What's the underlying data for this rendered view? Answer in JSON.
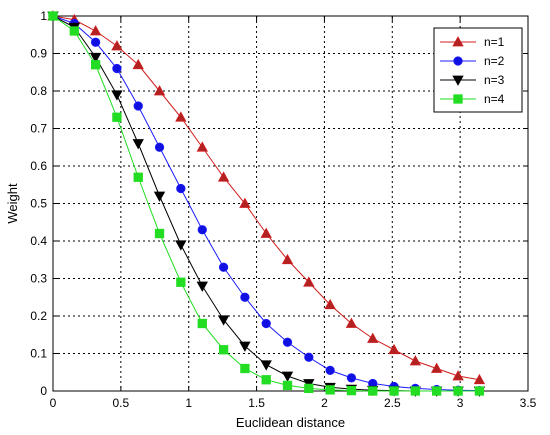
{
  "chart_data": {
    "type": "line",
    "title": "",
    "xlabel": "Euclidean distance",
    "ylabel": "Weight",
    "xlim": [
      0,
      3.5
    ],
    "ylim": [
      0,
      1
    ],
    "x_ticks": [
      "0",
      "0.5",
      "1",
      "1.5",
      "2",
      "2.5",
      "3",
      "3.5"
    ],
    "y_ticks": [
      "0",
      "0.1",
      "0.2",
      "0.3",
      "0.4",
      "0.5",
      "0.6",
      "0.7",
      "0.8",
      "0.9",
      "1"
    ],
    "grid": true,
    "legend_position": "top-right",
    "x": [
      0,
      0.157,
      0.314,
      0.471,
      0.628,
      0.785,
      0.942,
      1.1,
      1.257,
      1.414,
      1.571,
      1.728,
      1.885,
      2.042,
      2.199,
      2.356,
      2.513,
      2.67,
      2.827,
      2.985,
      3.142
    ],
    "series": [
      {
        "name": "n=1",
        "color": "#d01c1c",
        "marker_fill": "#b22222",
        "marker": "triangle-up",
        "values": [
          1.0,
          0.99,
          0.96,
          0.92,
          0.87,
          0.8,
          0.73,
          0.65,
          0.57,
          0.5,
          0.42,
          0.35,
          0.29,
          0.23,
          0.18,
          0.14,
          0.11,
          0.08,
          0.06,
          0.04,
          0.03
        ]
      },
      {
        "name": "n=2",
        "color": "#1c1cff",
        "marker_fill": "#1010e0",
        "marker": "circle",
        "values": [
          1.0,
          0.98,
          0.93,
          0.86,
          0.76,
          0.65,
          0.54,
          0.43,
          0.33,
          0.25,
          0.18,
          0.13,
          0.09,
          0.055,
          0.035,
          0.02,
          0.012,
          0.007,
          0.004,
          0.002,
          0.001
        ]
      },
      {
        "name": "n=3",
        "color": "#000000",
        "marker_fill": "#000000",
        "marker": "triangle-down",
        "values": [
          1.0,
          0.97,
          0.89,
          0.79,
          0.66,
          0.52,
          0.39,
          0.28,
          0.19,
          0.12,
          0.07,
          0.04,
          0.02,
          0.01,
          0.005,
          0.002,
          0.001,
          0.0,
          0.0,
          0.0,
          0.0
        ]
      },
      {
        "name": "n=4",
        "color": "#22dd22",
        "marker_fill": "#22dd22",
        "marker": "square",
        "values": [
          1.0,
          0.96,
          0.87,
          0.73,
          0.57,
          0.42,
          0.29,
          0.18,
          0.11,
          0.06,
          0.03,
          0.015,
          0.007,
          0.003,
          0.001,
          0.0,
          0.0,
          0.0,
          0.0,
          0.0,
          0.0
        ]
      }
    ]
  }
}
